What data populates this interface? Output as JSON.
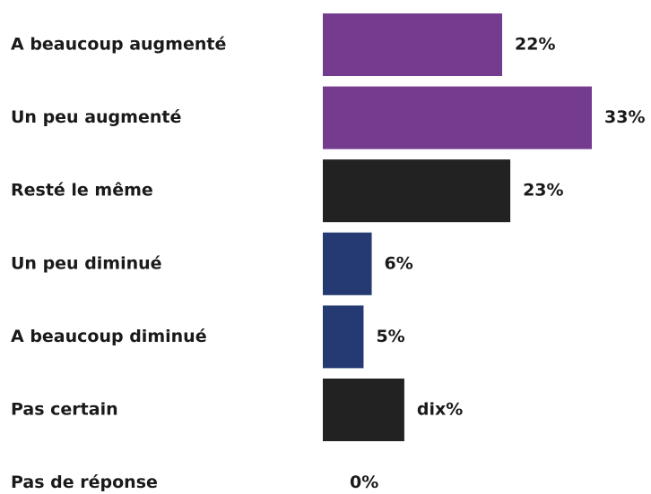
{
  "chart_data": {
    "type": "bar",
    "categories": [
      "A beaucoup augmenté",
      "Un peu augmenté",
      "Resté le même",
      "Un peu diminué",
      "A beaucoup diminué",
      "Pas certain",
      "Pas de réponse"
    ],
    "values": [
      22,
      33,
      23,
      6,
      5,
      10,
      0
    ],
    "value_labels": [
      "22%",
      "33%",
      "23%",
      "6%",
      "5%",
      "dix%",
      "0%"
    ],
    "colors": [
      "#753b8f",
      "#753b8f",
      "#222222",
      "#253a73",
      "#253a73",
      "#222222",
      "#222222"
    ]
  }
}
